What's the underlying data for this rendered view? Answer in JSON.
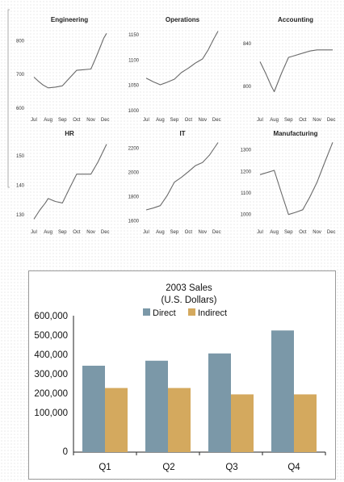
{
  "chart_data": [
    {
      "type": "line",
      "title": "Engineering",
      "categories": [
        "Jul",
        "Aug",
        "Sep",
        "Oct",
        "Nov",
        "Dec"
      ],
      "yticks": [
        "800",
        "700",
        "600"
      ],
      "ylim": [
        585,
        830
      ],
      "series": [
        {
          "x": [
            0,
            0.3,
            0.65,
            1.0,
            1.5,
            2.0,
            2.3,
            3.0,
            3.5,
            4.0,
            4.3,
            4.6,
            4.9,
            5.1
          ],
          "values": [
            692,
            680,
            668,
            660,
            662,
            666,
            680,
            712,
            714,
            716,
            745,
            776,
            808,
            822
          ]
        }
      ],
      "color": "#6a6a6a"
    },
    {
      "type": "line",
      "title": "Operations",
      "categories": [
        "Jul",
        "Aug",
        "Sep",
        "Oct",
        "Nov",
        "Dec"
      ],
      "yticks": [
        "1150",
        "1100",
        "1050",
        "1000"
      ],
      "ylim": [
        995,
        1158
      ],
      "series": [
        {
          "x": [
            0,
            0.5,
            1.0,
            1.5,
            2.0,
            2.5,
            3.0,
            3.5,
            4.0,
            4.4,
            4.8,
            5.1
          ],
          "values": [
            1064,
            1057,
            1051,
            1056,
            1062,
            1075,
            1084,
            1094,
            1102,
            1120,
            1142,
            1157
          ]
        }
      ],
      "color": "#6a6a6a"
    },
    {
      "type": "line",
      "title": "Accounting",
      "categories": [
        "Jul",
        "Aug",
        "Sep",
        "Oct",
        "Nov",
        "Dec"
      ],
      "yticks": [
        "840",
        "800"
      ],
      "ylim": [
        775,
        852
      ],
      "series": [
        {
          "x": [
            0,
            0.4,
            0.8,
            1.0,
            1.5,
            2.0,
            2.5,
            3.0,
            3.5,
            4.0,
            4.5,
            5.1
          ],
          "values": [
            823,
            812,
            800,
            795,
            812,
            827,
            829,
            831,
            833,
            834,
            834,
            834
          ]
        }
      ],
      "color": "#6a6a6a"
    },
    {
      "type": "line",
      "title": "HR",
      "categories": [
        "Jul",
        "Aug",
        "Sep",
        "Oct",
        "Nov",
        "Dec"
      ],
      "yticks": [
        "150",
        "140",
        "130"
      ],
      "ylim": [
        127.5,
        155
      ],
      "series": [
        {
          "x": [
            0,
            0.4,
            0.8,
            1.0,
            1.5,
            2.0,
            2.5,
            3.0,
            3.5,
            4.0,
            4.5,
            5.1
          ],
          "values": [
            128.5,
            131.5,
            134,
            135.5,
            134.5,
            134,
            139,
            143.8,
            143.8,
            143.8,
            148,
            154
          ]
        }
      ],
      "color": "#6a6a6a"
    },
    {
      "type": "line",
      "title": "IT",
      "categories": [
        "Jul",
        "Aug",
        "Sep",
        "Oct",
        "Nov",
        "Dec"
      ],
      "yticks": [
        "2200",
        "2000",
        "1800",
        "1600"
      ],
      "ylim": [
        1590,
        2255
      ],
      "series": [
        {
          "x": [
            0,
            0.5,
            1.0,
            1.5,
            2.0,
            2.5,
            3.0,
            3.5,
            4.0,
            4.5,
            5.1
          ],
          "values": [
            1690,
            1705,
            1725,
            1810,
            1918,
            1958,
            2005,
            2055,
            2080,
            2142,
            2245
          ]
        }
      ],
      "color": "#6a6a6a"
    },
    {
      "type": "line",
      "title": "Manufacturing",
      "categories": [
        "Jul",
        "Aug",
        "Sep",
        "Oct",
        "Nov",
        "Dec"
      ],
      "yticks": [
        "1300",
        "1200",
        "1100",
        "1000"
      ],
      "ylim": [
        965,
        1340
      ],
      "series": [
        {
          "x": [
            0,
            0.5,
            1.0,
            1.5,
            2.0,
            2.5,
            3.0,
            3.5,
            4.0,
            4.5,
            5.1
          ],
          "values": [
            1185,
            1195,
            1205,
            1100,
            1000,
            1010,
            1022,
            1082,
            1150,
            1235,
            1335
          ]
        }
      ],
      "color": "#6a6a6a"
    },
    {
      "type": "bar",
      "title": "2003 Sales",
      "subtitle": "(U.S. Dollars)",
      "categories": [
        "Q1",
        "Q2",
        "Q3",
        "Q4"
      ],
      "yticks": [
        "600,000",
        "500,000",
        "400,000",
        "300,000",
        "200,000",
        "100,000",
        "0"
      ],
      "ylim": [
        0,
        600000
      ],
      "legend_position": "top",
      "series": [
        {
          "name": "Direct",
          "values": [
            380000,
            402000,
            434000,
            535000
          ],
          "color": "#7b98a8"
        },
        {
          "name": "Indirect",
          "values": [
            282000,
            282000,
            254000,
            254000
          ],
          "color": "#d4a95e"
        }
      ]
    }
  ]
}
